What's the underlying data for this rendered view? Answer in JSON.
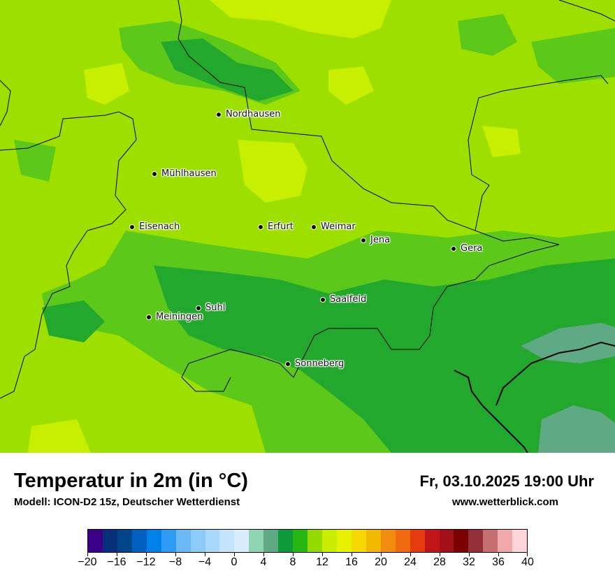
{
  "map": {
    "cities": [
      {
        "name": "Nordhausen"
      },
      {
        "name": "Mühlhausen"
      },
      {
        "name": "Eisenach"
      },
      {
        "name": "Erfurt"
      },
      {
        "name": "Weimar"
      },
      {
        "name": "Jena"
      },
      {
        "name": "Gera"
      },
      {
        "name": "Suhl"
      },
      {
        "name": "Meiningen"
      },
      {
        "name": "Saalfeld"
      },
      {
        "name": "Sonneberg"
      }
    ]
  },
  "footer": {
    "title": "Temperatur in 2m (in °C)",
    "subtitle": "Modell: ICON-D2 15z, Deutscher Wetterdienst",
    "datetime": "Fr, 03.10.2025 19:00 Uhr",
    "website": "www.wetterblick.com"
  },
  "legend": {
    "colors": [
      "#3a0087",
      "#06307a",
      "#00448a",
      "#0060c0",
      "#0080e8",
      "#2e9bf5",
      "#6ab9f5",
      "#8ccaf8",
      "#a8d8fa",
      "#c4e4fb",
      "#d8ecfc",
      "#8ed6b3",
      "#5fa985",
      "#0d9a3a",
      "#27b510",
      "#96d900",
      "#c8ec00",
      "#e8f200",
      "#f5d800",
      "#f2b800",
      "#f28c10",
      "#f06a10",
      "#e63a0f",
      "#c0161a",
      "#a4101a",
      "#7a0000",
      "#923038",
      "#c57070",
      "#f0a8a8",
      "#fdd4d8"
    ],
    "tick_labels": [
      "−20",
      "−16",
      "−12",
      "−8",
      "−4",
      "0",
      "4",
      "8",
      "12",
      "16",
      "20",
      "24",
      "28",
      "32",
      "36",
      "40"
    ]
  },
  "colors": {
    "base": "#9de000",
    "light": "#c8ee00",
    "mid": "#5cc81a",
    "dark": "#22a82c",
    "teal": "#5fa985"
  }
}
